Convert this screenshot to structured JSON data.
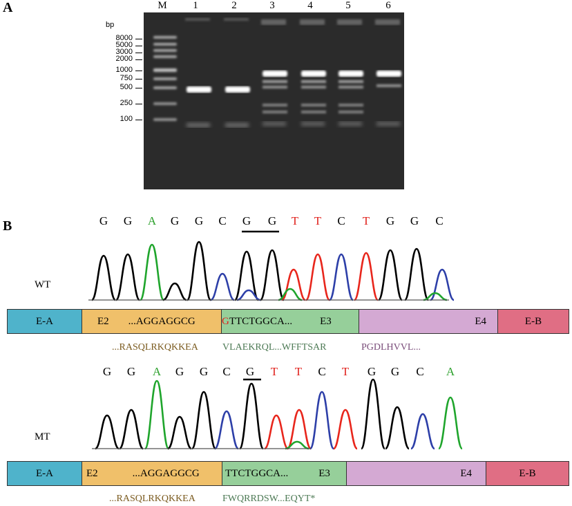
{
  "panels": {
    "a": "A",
    "b": "B"
  },
  "gel": {
    "lanes": [
      "M",
      "1",
      "2",
      "3",
      "4",
      "5",
      "6"
    ],
    "bp_unit": "bp",
    "ladder": [
      "8000",
      "5000",
      "3000",
      "2000",
      "1000",
      "750",
      "500",
      "250",
      "100"
    ]
  },
  "wt": {
    "label": "WT",
    "sequence": [
      "G",
      "G",
      "A",
      "G",
      "G",
      "C",
      "G",
      "G",
      "T",
      "T",
      "C",
      "T",
      "G",
      "G",
      "C"
    ],
    "bar": {
      "ea": "E-A",
      "e2": "E2",
      "e2_seq": "...AGGAGGCG",
      "e3_first": "G",
      "e3_seq": "TTCTGGCA...",
      "e3": "E3",
      "e4": "E4",
      "eb": "E-B"
    },
    "protein": {
      "e2": "...RASQLRKQKKEA",
      "e3": "VLAEKRQL...WFFTSAR",
      "e4": "PGDLHVVL..."
    }
  },
  "mt": {
    "label": "MT",
    "sequence": [
      "G",
      "G",
      "A",
      "G",
      "G",
      "C",
      "G",
      "T",
      "T",
      "C",
      "T",
      "G",
      "G",
      "C",
      "A"
    ],
    "bar": {
      "ea": "E-A",
      "e2": "E2",
      "e2_seq": "...AGGAGGCG",
      "e3_seq": "TTCTGGCA...",
      "e3": "E3",
      "e4": "E4",
      "eb": "E-B"
    },
    "protein": {
      "e2": "...RASQLRKQKKEA",
      "e3": "FWQRRDSW...EQYT*"
    }
  },
  "colors": {
    "G": "#000000",
    "A": "#2ca02c",
    "T": "#e0201b",
    "C": "#000000",
    "trace_g": "#000000",
    "trace_a": "#1fa52c",
    "trace_t": "#e8261c",
    "trace_c": "#2d3fa8",
    "ea": "#4fb3cb",
    "e2": "#f0c06a",
    "e3": "#96cf9a",
    "e4": "#d4a9d3",
    "eb": "#e06e84",
    "prot_e2": "#7a5a1e",
    "prot_e3": "#4d7a55",
    "prot_e4": "#7a4d7a"
  }
}
